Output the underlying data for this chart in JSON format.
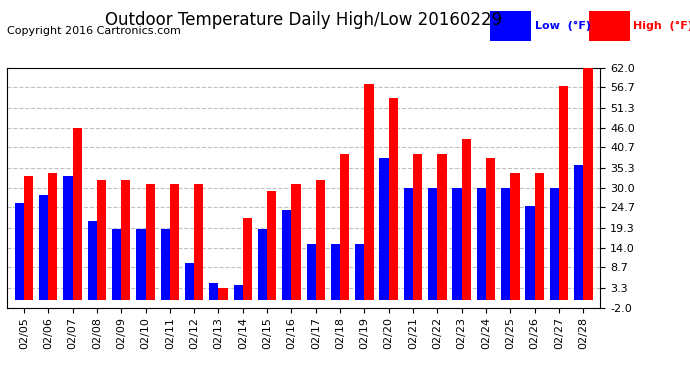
{
  "title": "Outdoor Temperature Daily High/Low 20160229",
  "copyright": "Copyright 2016 Cartronics.com",
  "legend_low": "Low  (°F)",
  "legend_high": "High  (°F)",
  "dates": [
    "02/05",
    "02/06",
    "02/07",
    "02/08",
    "02/09",
    "02/10",
    "02/11",
    "02/12",
    "02/13",
    "02/14",
    "02/15",
    "02/16",
    "02/17",
    "02/18",
    "02/19",
    "02/20",
    "02/21",
    "02/22",
    "02/23",
    "02/24",
    "02/25",
    "02/26",
    "02/27",
    "02/28"
  ],
  "high": [
    33.0,
    34.0,
    46.0,
    32.0,
    32.0,
    31.0,
    31.0,
    31.0,
    3.3,
    22.0,
    29.0,
    31.0,
    32.0,
    39.0,
    57.5,
    54.0,
    39.0,
    39.0,
    43.0,
    38.0,
    34.0,
    34.0,
    57.0,
    62.0
  ],
  "low": [
    26.0,
    28.0,
    33.0,
    21.0,
    19.0,
    19.0,
    19.0,
    10.0,
    4.5,
    4.0,
    19.0,
    24.0,
    15.0,
    15.0,
    15.0,
    38.0,
    30.0,
    30.0,
    30.0,
    30.0,
    30.0,
    25.0,
    30.0,
    36.0
  ],
  "yticks": [
    -2.0,
    3.3,
    8.7,
    14.0,
    19.3,
    24.7,
    30.0,
    35.3,
    40.7,
    46.0,
    51.3,
    56.7,
    62.0
  ],
  "ylim": [
    -2.0,
    62.0
  ],
  "bar_color_low": "#0000ff",
  "bar_color_high": "#ff0000",
  "background_color": "#ffffff",
  "grid_color": "#c0c0c0",
  "title_fontsize": 12,
  "copyright_fontsize": 8,
  "tick_fontsize": 8,
  "bar_width": 0.38
}
